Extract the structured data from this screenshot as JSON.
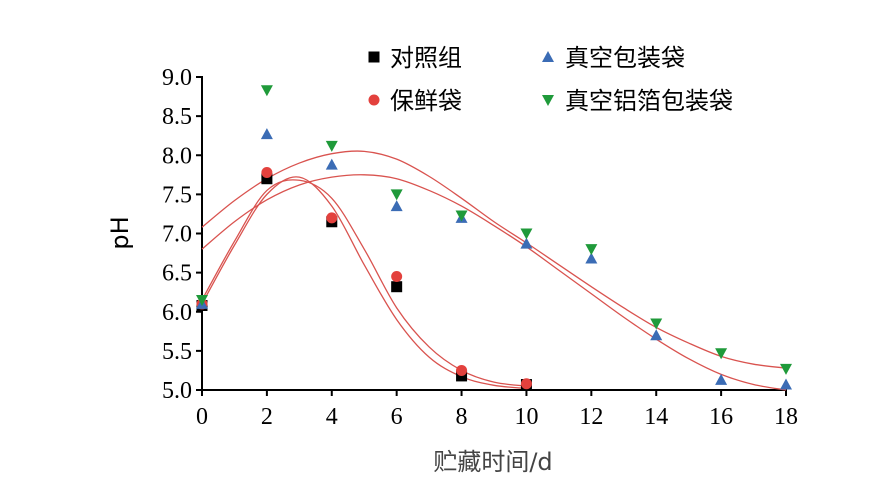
{
  "chart_data": {
    "type": "scatter",
    "xlabel": "贮藏时间/d",
    "ylabel": "pH",
    "xlim": [
      0,
      18
    ],
    "ylim": [
      5.0,
      9.0
    ],
    "xticks": [
      "0",
      "2",
      "4",
      "6",
      "8",
      "10",
      "12",
      "14",
      "16",
      "18"
    ],
    "yticks": [
      "5.0",
      "5.5",
      "6.0",
      "6.5",
      "7.0",
      "7.5",
      "8.0",
      "8.5",
      "9.0"
    ],
    "legend_position": "top",
    "series": [
      {
        "name": "对照组",
        "marker": "square",
        "color": "#000000",
        "x": [
          0,
          2,
          4,
          6,
          8,
          10
        ],
        "y": [
          6.08,
          7.7,
          7.15,
          6.32,
          5.18,
          5.07
        ],
        "fit": [
          [
            0,
            6.1
          ],
          [
            1,
            6.85
          ],
          [
            2,
            7.5
          ],
          [
            3,
            7.72
          ],
          [
            4,
            7.35
          ],
          [
            5,
            6.6
          ],
          [
            6,
            5.9
          ],
          [
            7,
            5.42
          ],
          [
            8,
            5.17
          ],
          [
            9,
            5.06
          ],
          [
            10,
            5.02
          ]
        ]
      },
      {
        "name": "保鲜袋",
        "marker": "circle",
        "color": "#e3413d",
        "x": [
          0,
          2,
          4,
          6,
          8,
          10
        ],
        "y": [
          6.1,
          7.78,
          7.2,
          6.45,
          5.25,
          5.08
        ],
        "fit": [
          [
            0,
            6.15
          ],
          [
            1,
            6.9
          ],
          [
            2,
            7.55
          ],
          [
            3,
            7.68
          ],
          [
            4,
            7.45
          ],
          [
            5,
            6.8
          ],
          [
            6,
            6.05
          ],
          [
            7,
            5.55
          ],
          [
            8,
            5.25
          ],
          [
            9,
            5.1
          ],
          [
            10,
            5.05
          ]
        ]
      },
      {
        "name": "真空包装袋",
        "marker": "triangle-up",
        "color": "#3b6cb5",
        "x": [
          0,
          2,
          4,
          6,
          8,
          10,
          12,
          14,
          16,
          18
        ],
        "y": [
          6.1,
          8.27,
          7.88,
          7.35,
          7.2,
          6.87,
          6.68,
          5.7,
          5.13,
          5.07
        ],
        "fit": [
          [
            0,
            6.8
          ],
          [
            1,
            7.15
          ],
          [
            2,
            7.43
          ],
          [
            3,
            7.62
          ],
          [
            4,
            7.72
          ],
          [
            5,
            7.75
          ],
          [
            6,
            7.7
          ],
          [
            7,
            7.55
          ],
          [
            8,
            7.35
          ],
          [
            9,
            7.1
          ],
          [
            10,
            6.83
          ],
          [
            11,
            6.53
          ],
          [
            12,
            6.23
          ],
          [
            13,
            5.93
          ],
          [
            14,
            5.65
          ],
          [
            15,
            5.4
          ],
          [
            16,
            5.2
          ],
          [
            17,
            5.07
          ],
          [
            18,
            5.0
          ]
        ]
      },
      {
        "name": "真空铝箔包装袋",
        "marker": "triangle-down",
        "color": "#1f9a3a",
        "x": [
          0,
          2,
          4,
          6,
          8,
          10,
          12,
          14,
          16,
          18
        ],
        "y": [
          6.15,
          8.83,
          8.12,
          7.5,
          7.23,
          7.0,
          6.8,
          5.85,
          5.47,
          5.27
        ],
        "fit": [
          [
            0,
            7.08
          ],
          [
            1,
            7.42
          ],
          [
            2,
            7.7
          ],
          [
            3,
            7.9
          ],
          [
            4,
            8.02
          ],
          [
            5,
            8.05
          ],
          [
            6,
            7.95
          ],
          [
            7,
            7.73
          ],
          [
            8,
            7.45
          ],
          [
            9,
            7.15
          ],
          [
            10,
            6.88
          ],
          [
            11,
            6.6
          ],
          [
            12,
            6.32
          ],
          [
            13,
            6.05
          ],
          [
            14,
            5.8
          ],
          [
            15,
            5.6
          ],
          [
            16,
            5.43
          ],
          [
            17,
            5.33
          ],
          [
            18,
            5.28
          ]
        ]
      }
    ]
  }
}
